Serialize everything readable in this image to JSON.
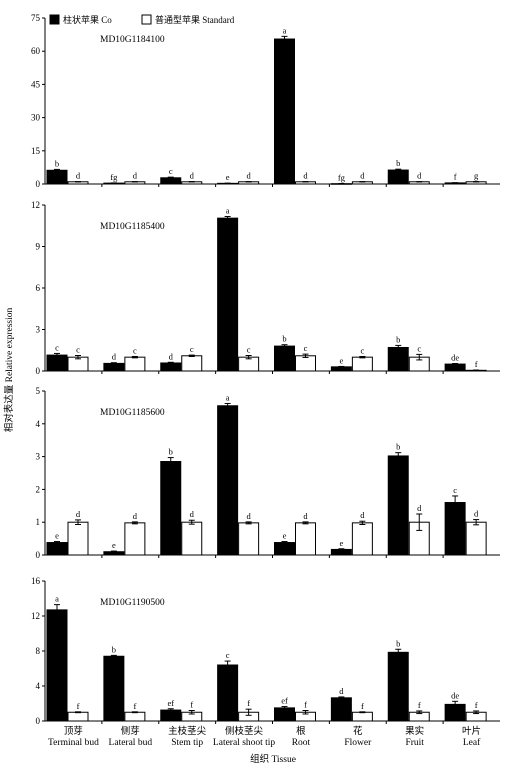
{
  "chart_data": {
    "type": "bar",
    "ylabel": "相对表达量 Relative expression",
    "xlabel": "组织 Tissue",
    "legend": {
      "placement": "top-left",
      "entries": [
        {
          "label": "柱状苹果  Co",
          "color": "#000000"
        },
        {
          "label": "普通型苹果  Standard",
          "color": "#ffffff"
        }
      ]
    },
    "categories": [
      {
        "zh": "顶芽",
        "en": "Terminal bud"
      },
      {
        "zh": "侧芽",
        "en": "Lateral bud"
      },
      {
        "zh": "主枝茎尖",
        "en": "Stem tip"
      },
      {
        "zh": "侧枝茎尖",
        "en": "Lateral shoot tip"
      },
      {
        "zh": "根",
        "en": "Root"
      },
      {
        "zh": "花",
        "en": "Flower"
      },
      {
        "zh": "果实",
        "en": "Fruit"
      },
      {
        "zh": "叶片",
        "en": "Leaf"
      }
    ],
    "panels": [
      {
        "gene": "MD10G1184100",
        "ylim": [
          0,
          75
        ],
        "yticks": [
          "0",
          "15",
          "30",
          "45",
          "60",
          "75"
        ],
        "series": [
          {
            "name": "柱状苹果  Co",
            "values": [
              6.2,
              0.4,
              2.8,
              0.3,
              65.5,
              0.15,
              6.3,
              0.5
            ],
            "err": [
              0.4,
              0.1,
              0.3,
              0.1,
              1.2,
              0.05,
              0.4,
              0.1
            ],
            "letters": [
              "b",
              "fg",
              "c",
              "e",
              "a",
              "fg",
              "b",
              "f"
            ]
          },
          {
            "name": "普通型苹果  Standard",
            "values": [
              1,
              1,
              1,
              1,
              1,
              1,
              1,
              1
            ],
            "err": [
              0.1,
              0.1,
              0.1,
              0.1,
              0.1,
              0.1,
              0.1,
              0.1
            ],
            "letters": [
              "d",
              "d",
              "d",
              "d",
              "d",
              "d",
              "d",
              "g"
            ]
          }
        ]
      },
      {
        "gene": "MD10G1185400",
        "ylim": [
          0,
          12
        ],
        "yticks": [
          "0",
          "3",
          "6",
          "9",
          "12"
        ],
        "series": [
          {
            "name": "柱状苹果  Co",
            "values": [
              1.15,
              0.55,
              0.58,
              11.05,
              1.8,
              0.3,
              1.7,
              0.5
            ],
            "err": [
              0.12,
              0.05,
              0.05,
              0.12,
              0.1,
              0.03,
              0.15,
              0.04
            ],
            "letters": [
              "c",
              "d",
              "d",
              "a",
              "b",
              "e",
              "b",
              "de"
            ]
          },
          {
            "name": "普通型苹果  Standard",
            "values": [
              1,
              1,
              1.1,
              1,
              1.1,
              1,
              1,
              0.05
            ],
            "err": [
              0.12,
              0.05,
              0.05,
              0.12,
              0.12,
              0.05,
              0.2,
              0.02
            ],
            "letters": [
              "c",
              "c",
              "c",
              "c",
              "c",
              "c",
              "c",
              "f"
            ]
          }
        ]
      },
      {
        "gene": "MD10G1185600",
        "ylim": [
          0,
          5
        ],
        "yticks": [
          "0",
          "1",
          "2",
          "3",
          "4",
          "5"
        ],
        "series": [
          {
            "name": "柱状苹果  Co",
            "values": [
              0.38,
              0.1,
              2.85,
              4.55,
              0.38,
              0.17,
              3.02,
              1.6
            ],
            "err": [
              0.03,
              0.02,
              0.12,
              0.07,
              0.03,
              0.02,
              0.1,
              0.2
            ],
            "letters": [
              "e",
              "e",
              "b",
              "a",
              "e",
              "e",
              "b",
              "c"
            ]
          },
          {
            "name": "普通型苹果  Standard",
            "values": [
              1,
              0.98,
              1,
              0.98,
              0.98,
              0.98,
              1,
              1
            ],
            "err": [
              0.07,
              0.03,
              0.06,
              0.03,
              0.03,
              0.05,
              0.25,
              0.08
            ],
            "letters": [
              "d",
              "d",
              "d",
              "d",
              "d",
              "d",
              "d",
              "d"
            ]
          }
        ]
      },
      {
        "gene": "MD10G1190500",
        "ylim": [
          0,
          16
        ],
        "yticks": [
          "0",
          "4",
          "8",
          "12",
          "16"
        ],
        "series": [
          {
            "name": "柱状苹果  Co",
            "values": [
              12.7,
              7.4,
              1.25,
              6.4,
              1.5,
              2.65,
              7.85,
              1.9
            ],
            "err": [
              0.6,
              0.1,
              0.15,
              0.45,
              0.15,
              0.1,
              0.35,
              0.35
            ],
            "letters": [
              "a",
              "b",
              "ef",
              "c",
              "ef",
              "d",
              "b",
              "de"
            ]
          },
          {
            "name": "普通型苹果  Standard",
            "values": [
              1,
              1,
              1,
              1,
              1,
              1,
              1,
              1
            ],
            "err": [
              0.05,
              0.05,
              0.2,
              0.35,
              0.2,
              0.05,
              0.15,
              0.15
            ],
            "letters": [
              "f",
              "f",
              "f",
              "f",
              "f",
              "f",
              "f",
              "f"
            ]
          }
        ]
      }
    ]
  }
}
